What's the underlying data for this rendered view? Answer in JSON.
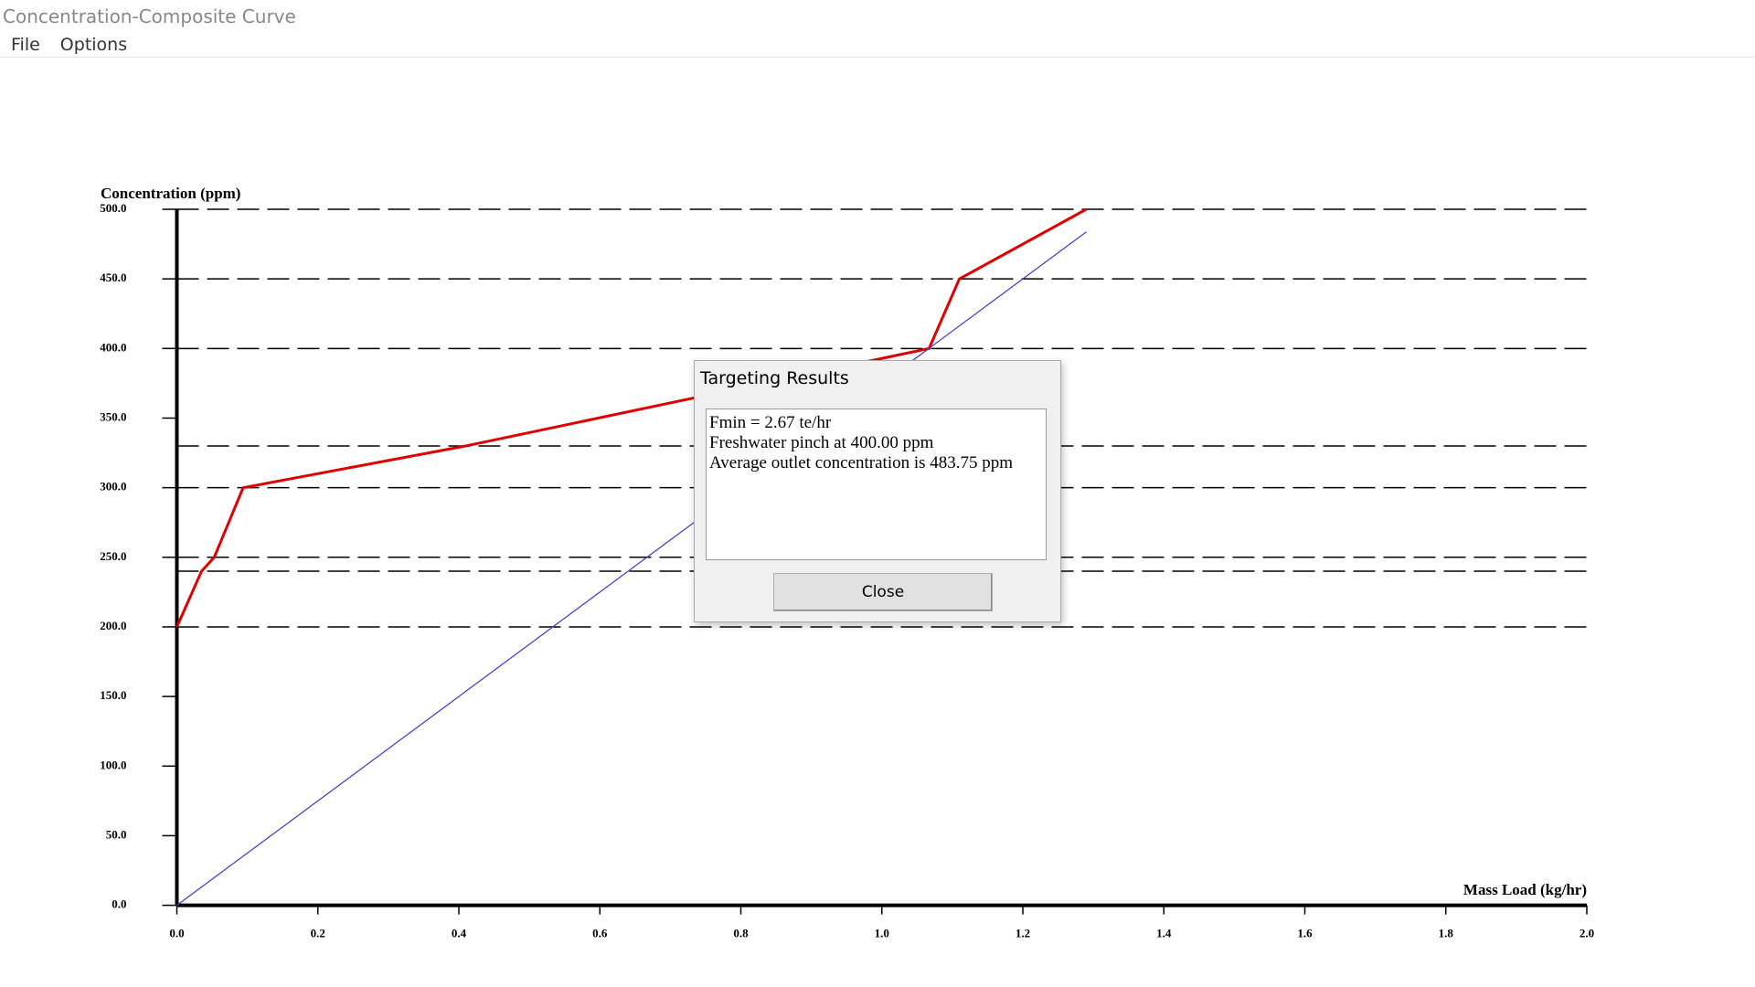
{
  "window": {
    "title": "Concentration-Composite Curve",
    "menu": [
      "File",
      "Options"
    ]
  },
  "chart_data": {
    "type": "line",
    "x_label": "Mass Load (kg/hr)",
    "y_label": "Concentration (ppm)",
    "series": [
      {
        "color": "#e00000",
        "x": [
          0,
          0.035,
          0.053,
          0.094,
          0.41,
          1.067,
          1.11,
          1.29
        ],
        "values": [
          200,
          240,
          250,
          300,
          330,
          400,
          450,
          500
        ]
      },
      {
        "color": "#3a3acc",
        "x": [
          0,
          1.29
        ],
        "values": [
          0,
          483.75
        ]
      }
    ],
    "levels": [
      200,
      240,
      250,
      300,
      330,
      400,
      450,
      500
    ],
    "xlim": [
      0,
      2
    ],
    "ylim": [
      0,
      500
    ],
    "xticks": [
      {
        "value": 0,
        "label": "0.0"
      },
      0.2,
      0.4,
      0.6,
      0.8,
      {
        "value": 1,
        "label": "1.0"
      },
      1.2,
      1.4,
      1.6,
      1.8,
      {
        "value": 2,
        "label": "2.0"
      }
    ],
    "yticks": [
      {
        "value": 0,
        "label": "0.0"
      },
      {
        "value": 50,
        "label": "50.0"
      },
      {
        "value": 100,
        "label": "100.0"
      },
      {
        "value": 150,
        "label": "150.0"
      },
      {
        "value": 200,
        "label": "200.0"
      },
      {
        "value": 250,
        "label": "250.0"
      },
      {
        "value": 300,
        "label": "300.0"
      },
      {
        "value": 350,
        "label": "350.0"
      },
      {
        "value": 400,
        "label": "400.0"
      },
      {
        "value": 450,
        "label": "450.0"
      },
      {
        "value": 500,
        "label": "500.0"
      }
    ]
  },
  "dialog": {
    "title": "Targeting Results",
    "lines": [
      "Fmin = 2.67 te/hr",
      "Freshwater pinch at 400.00 ppm",
      "Average outlet concentration is 483.75 ppm"
    ],
    "button": "Close"
  }
}
